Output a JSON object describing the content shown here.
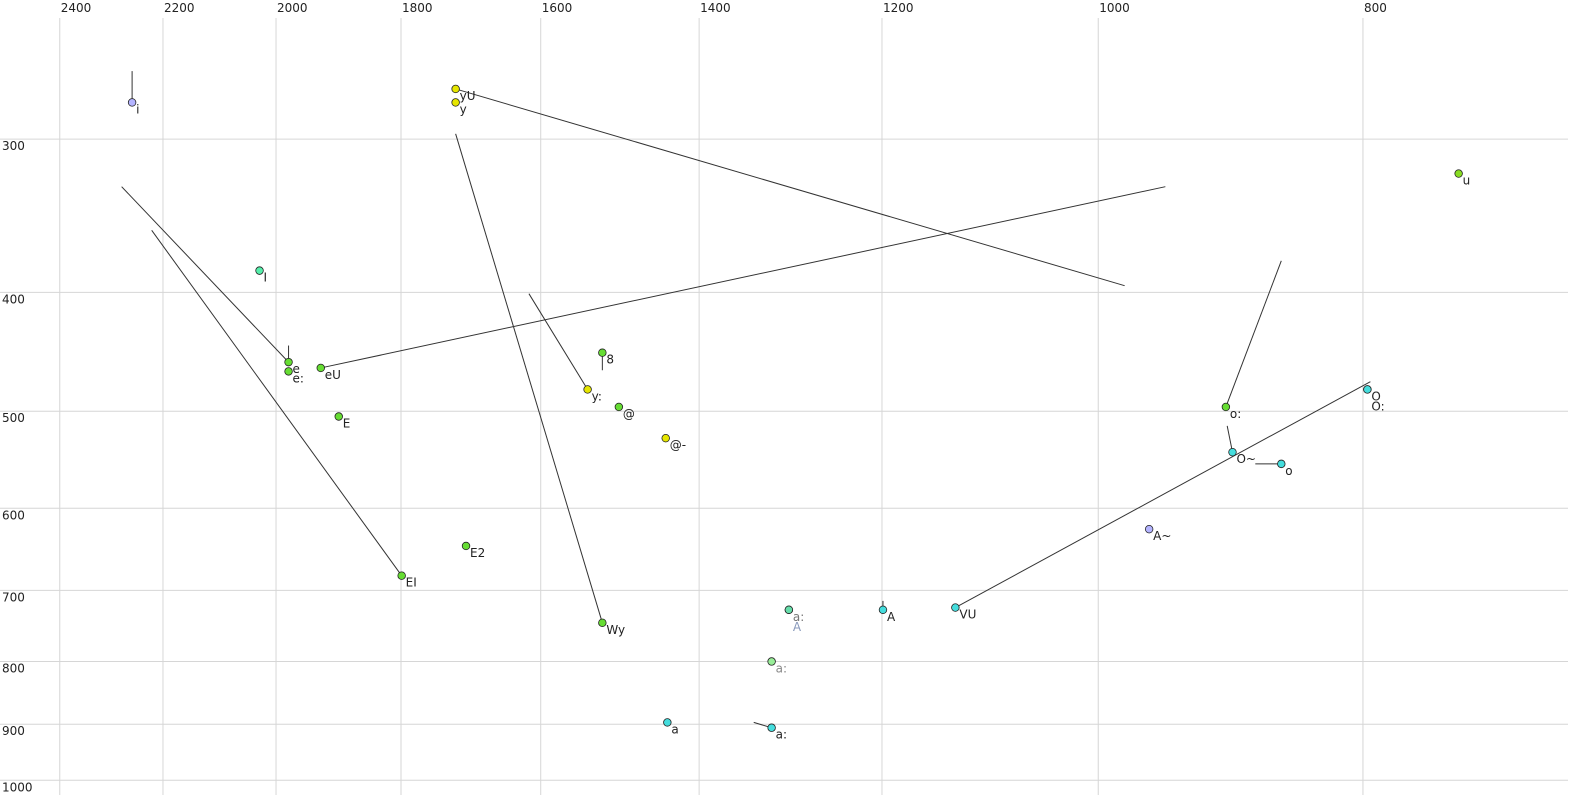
{
  "chart_data": {
    "type": "scatter",
    "x_scale": "log",
    "y_scale": "log",
    "grid": true,
    "xlim": [
      2524,
      673
    ],
    "ylim": [
      231,
      1028
    ],
    "xticks": [
      2400,
      2200,
      2000,
      1800,
      1600,
      1400,
      1200,
      1000,
      800
    ],
    "yticks": [
      300,
      400,
      500,
      600,
      700,
      800,
      900,
      1000
    ],
    "labels": [
      "i",
      "yU",
      "y",
      "u",
      "I",
      "e",
      "e:",
      "eU",
      "E",
      "8",
      "y:",
      "@",
      "@-",
      "E2",
      "EI",
      "Wy",
      "a:",
      "A",
      "A",
      "VU",
      "a:",
      "a",
      "a:",
      "A~",
      "o:",
      "O~",
      "o",
      "O",
      "O:"
    ],
    "x": [
      2258,
      1719,
      1719,
      738,
      2028,
      1979,
      1979,
      1926,
      1897,
      1519,
      1538,
      1498,
      1440,
      1704,
      1799,
      1519,
      1298,
      1298,
      1199,
      1128,
      1317,
      1438,
      1317,
      958,
      898,
      893,
      857,
      797,
      797
    ],
    "y": [
      280,
      273,
      280,
      320,
      384,
      456,
      464,
      461,
      505,
      448,
      480,
      496,
      526,
      644,
      681,
      744,
      726,
      726,
      726,
      723,
      800,
      897,
      906,
      624,
      496,
      540,
      552,
      480,
      480
    ],
    "colors": [
      "#b4b4ff",
      "#e6e600",
      "#e6e600",
      "#88dd22",
      "#55eeaa",
      "#66dd33",
      "#66dd33",
      "#66dd33",
      "#66dd33",
      "#66dd33",
      "#e6e600",
      "#66dd33",
      "#e6e600",
      "#66dd33",
      "#66dd33",
      "#66dd33",
      "#66ddaa",
      "#66ddaa",
      "#44dddd",
      "#44dddd",
      "#99ee99",
      "#44dddd",
      "#44dddd",
      "#b4b4ff",
      "#66dd33",
      "#44dddd",
      "#44dddd",
      "#44dddd",
      "#44dddd"
    ],
    "label_colors": [
      "#222222",
      "#222222",
      "#222222",
      "#222222",
      "#222222",
      "#222222",
      "#222222",
      "#222222",
      "#222222",
      "#222222",
      "#222222",
      "#222222",
      "#222222",
      "#222222",
      "#222222",
      "#222222",
      "#777777",
      "#8899bb",
      "#222222",
      "#222222",
      "#888888",
      "#222222",
      "#222222",
      "#222222",
      "#222222",
      "#222222",
      "#222222",
      "#222222",
      "#222222"
    ],
    "trajectories": [
      {
        "x": [
          2258,
          2258
        ],
        "y": [
          264,
          280
        ]
      },
      {
        "x": [
          1719,
          978
        ],
        "y": [
          273,
          395
        ]
      },
      {
        "x": [
          2278,
          1979
        ],
        "y": [
          328,
          456
        ]
      },
      {
        "x": [
          2221,
          1799
        ],
        "y": [
          356,
          681
        ]
      },
      {
        "x": [
          1979,
          1979
        ],
        "y": [
          442,
          456
        ]
      },
      {
        "x": [
          1926,
          945
        ],
        "y": [
          461,
          328
        ]
      },
      {
        "x": [
          1719,
          1519
        ],
        "y": [
          297,
          744
        ]
      },
      {
        "x": [
          1616,
          1538
        ],
        "y": [
          401,
          480
        ]
      },
      {
        "x": [
          1519,
          1519
        ],
        "y": [
          448,
          463
        ]
      },
      {
        "x": [
          1199,
          1199
        ],
        "y": [
          714,
          726
        ]
      },
      {
        "x": [
          1128,
          795
        ],
        "y": [
          723,
          473
        ]
      },
      {
        "x": [
          898,
          857
        ],
        "y": [
          496,
          377
        ]
      },
      {
        "x": [
          893,
          897
        ],
        "y": [
          540,
          514
        ]
      },
      {
        "x": [
          857,
          876
        ],
        "y": [
          552,
          552
        ]
      },
      {
        "x": [
          1317,
          1337
        ],
        "y": [
          906,
          897
        ]
      }
    ]
  }
}
